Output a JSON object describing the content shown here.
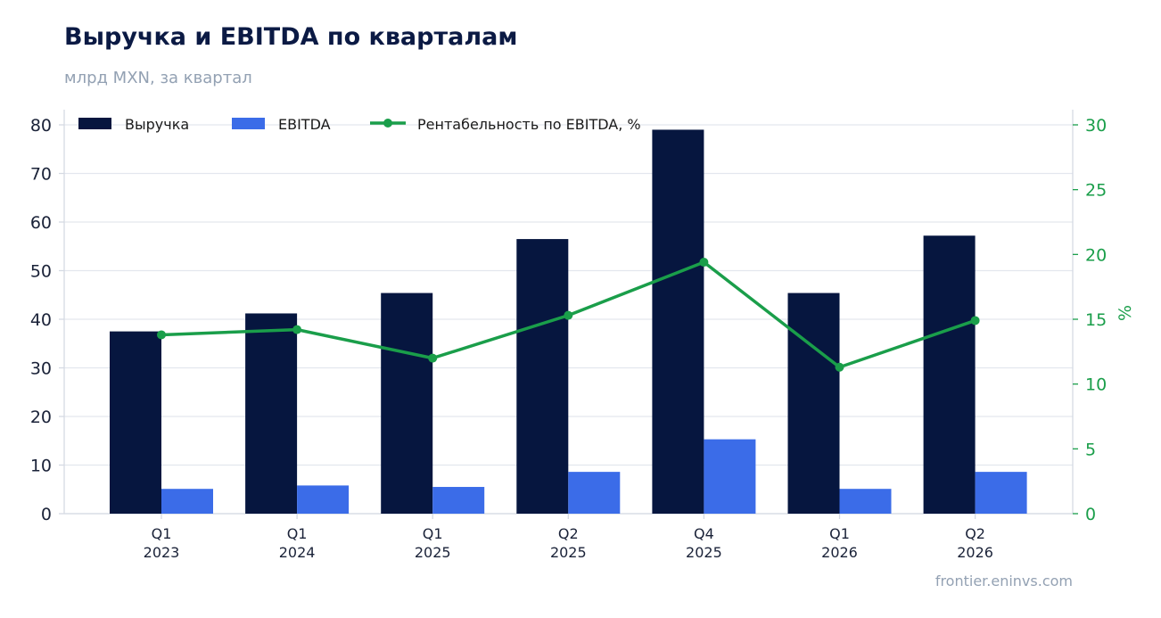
{
  "title": "Выручка и EBITDA по кварталам",
  "subtitle": "млрд MXN, за квартал",
  "source": "frontier.eninvs.com",
  "colors": {
    "revenue": "#06163f",
    "ebitda": "#3b6ce8",
    "margin": "#1a9e4a",
    "grid": "#e3e7ee",
    "axis": "#d5dae3"
  },
  "chart_data": {
    "type": "bar",
    "categories": [
      [
        "Q1",
        "2023"
      ],
      [
        "Q1",
        "2024"
      ],
      [
        "Q1",
        "2025"
      ],
      [
        "Q2",
        "2025"
      ],
      [
        "Q4",
        "2025"
      ],
      [
        "Q1",
        "2026"
      ],
      [
        "Q2",
        "2026"
      ]
    ],
    "series": [
      {
        "name": "Выручка",
        "type": "bar",
        "axis": "left",
        "values": [
          37.5,
          41.2,
          45.4,
          56.5,
          79.0,
          45.4,
          57.2
        ]
      },
      {
        "name": "EBITDA",
        "type": "bar",
        "axis": "left",
        "values": [
          5.1,
          5.8,
          5.5,
          8.6,
          15.3,
          5.1,
          8.6
        ]
      },
      {
        "name": "Рентабельность по EBITDA, %",
        "type": "line",
        "axis": "right",
        "values": [
          13.8,
          14.2,
          12.0,
          15.3,
          19.4,
          11.3,
          14.9
        ]
      }
    ],
    "y_left": {
      "min": 0,
      "max": 80,
      "ticks": [
        0,
        10,
        20,
        30,
        40,
        50,
        60,
        70,
        80
      ]
    },
    "y_right": {
      "label": "%",
      "min": 0,
      "max": 30,
      "ticks": [
        0,
        5,
        10,
        15,
        20,
        25,
        30
      ]
    },
    "grid": true,
    "legend": "top-left"
  }
}
